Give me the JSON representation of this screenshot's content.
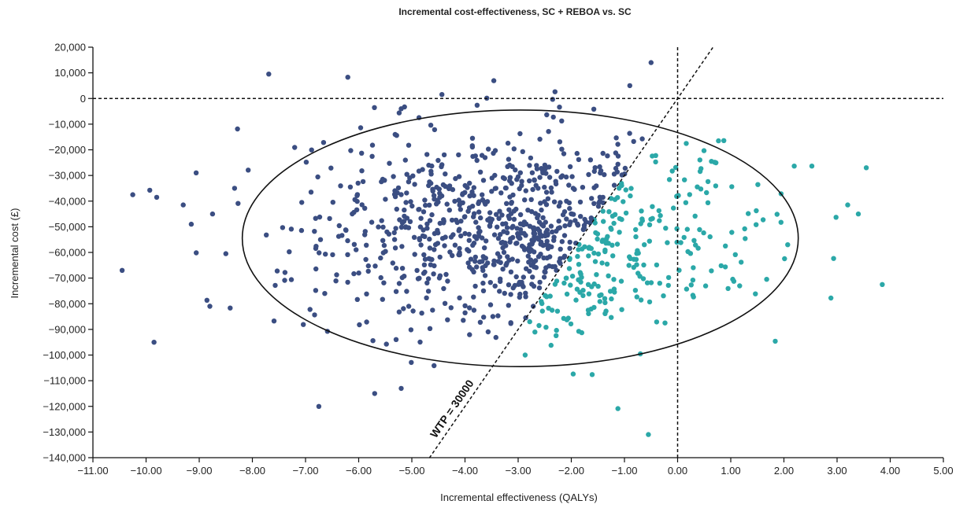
{
  "chart_data": {
    "type": "scatter",
    "title": "Incremental cost-effectiveness, SC + REBOA vs. SC",
    "xlabel": "Incremental effectiveness (QALYs)",
    "ylabel": "Incremental cost (£)",
    "xlim": [
      -11,
      5
    ],
    "ylim": [
      -140000,
      20000
    ],
    "x_ticks": [
      -11,
      -10,
      -9,
      -8,
      -7,
      -6,
      -5,
      -4,
      -3,
      -2,
      -1,
      0,
      1,
      2,
      3,
      4,
      5
    ],
    "x_tick_labels": [
      "−11.00",
      "−10.00",
      "−9.00",
      "−8.00",
      "−7.00",
      "−6.00",
      "−5.00",
      "−4.00",
      "−3.00",
      "−2.00",
      "−1.00",
      "0.00",
      "1.00",
      "2.00",
      "3.00",
      "4.00",
      "5.00"
    ],
    "y_ticks": [
      20000,
      10000,
      0,
      -10000,
      -20000,
      -30000,
      -40000,
      -50000,
      -60000,
      -70000,
      -80000,
      -90000,
      -100000,
      -110000,
      -120000,
      -130000,
      -140000
    ],
    "y_tick_labels": [
      "20,000",
      "10,000",
      "0",
      "−10,000",
      "−20,000",
      "−30,000",
      "−40,000",
      "−50,000",
      "−60,000",
      "−70,000",
      "−80,000",
      "−90,000",
      "−100,000",
      "−110,000",
      "−120,000",
      "−130,000",
      "−140,000"
    ],
    "grid": false,
    "colors": {
      "below_wtp": "#2ba8a8",
      "above_wtp": "#3b4e82",
      "lines": "#111111"
    },
    "wtp_line": {
      "label": "WTP = 30000",
      "slope": 30000
    },
    "ellipse": {
      "center": [
        -2.96,
        -54500
      ],
      "semi_axis_x": 5.23,
      "semi_axis_y": 50000
    },
    "cloud": {
      "n_points": 1000,
      "mean": [
        -3.0,
        -52000
      ],
      "sd": [
        2.0,
        19000
      ],
      "x_clip": [
        -10.5,
        3.9
      ],
      "y_clip": [
        -131000,
        14000
      ],
      "extra_points": [
        [
          -10.45,
          -67000
        ],
        [
          -10.25,
          -37500
        ],
        [
          -9.85,
          -95000
        ],
        [
          -9.8,
          -38500
        ],
        [
          -9.3,
          -41500
        ],
        [
          -9.15,
          -49000
        ],
        [
          -8.75,
          -45000
        ],
        [
          -8.8,
          -81000
        ],
        [
          -8.5,
          -60500
        ],
        [
          -6.75,
          -120000
        ],
        [
          -5.7,
          -115000
        ],
        [
          -5.2,
          -113000
        ],
        [
          -5.2,
          -4000
        ],
        [
          -0.9,
          5000
        ],
        [
          -0.5,
          14000
        ],
        [
          -0.55,
          -131000
        ],
        [
          3.55,
          -27000
        ],
        [
          3.85,
          -72500
        ],
        [
          3.4,
          -45000
        ],
        [
          3.2,
          -41500
        ]
      ]
    }
  }
}
